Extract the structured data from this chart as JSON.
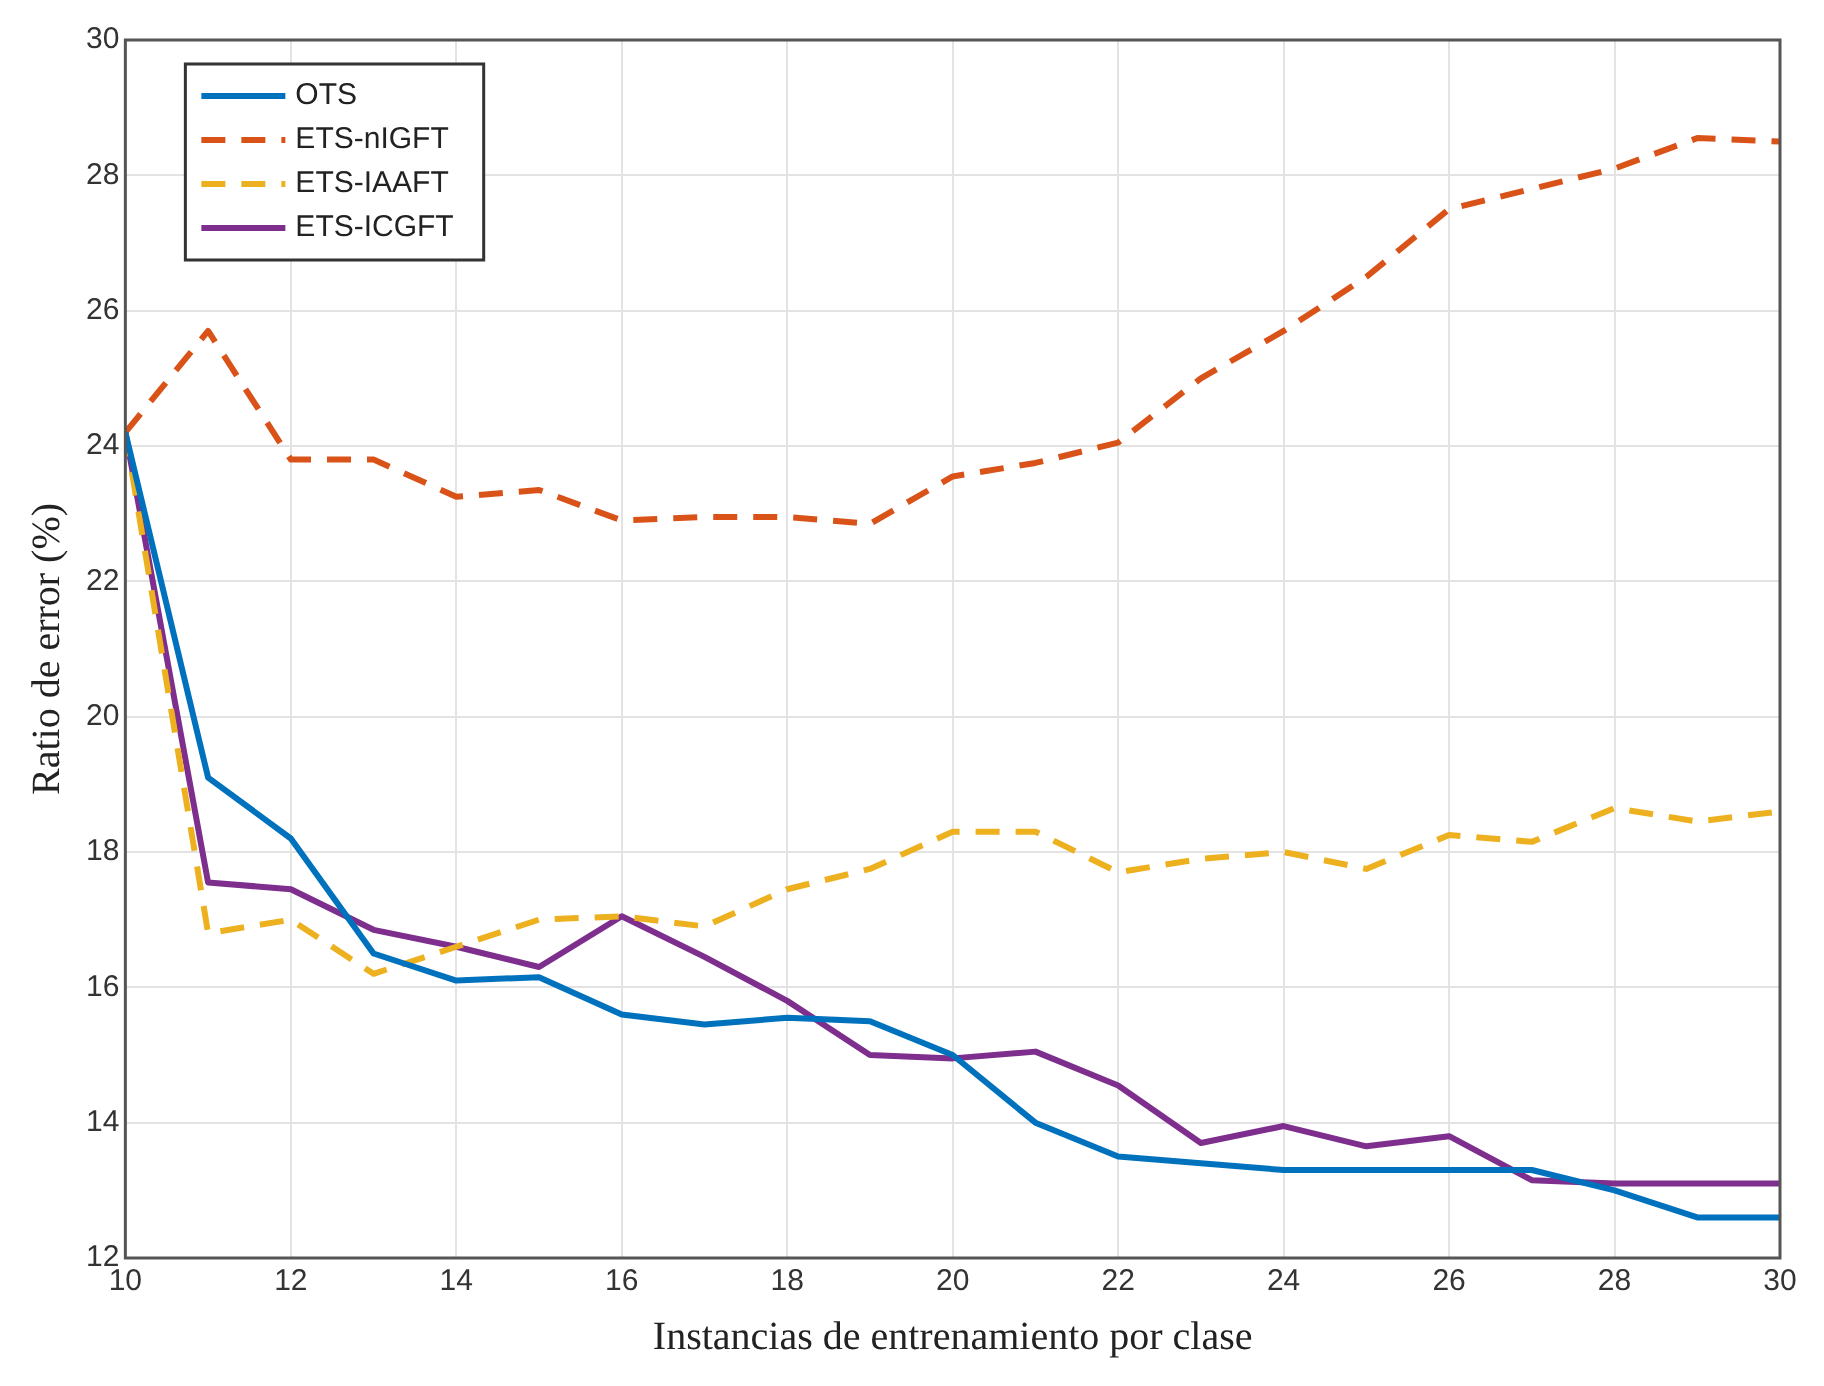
{
  "chart_data": {
    "type": "line",
    "xlabel": "Instancias de entrenamiento por clase",
    "ylabel": "Ratio de error (%)",
    "x": [
      10,
      11,
      12,
      13,
      14,
      15,
      16,
      17,
      18,
      19,
      20,
      21,
      22,
      23,
      24,
      25,
      26,
      27,
      28,
      29,
      30
    ],
    "xlim": [
      10,
      30
    ],
    "xticks": [
      10,
      12,
      14,
      16,
      18,
      20,
      22,
      24,
      26,
      28,
      30
    ],
    "ylim": [
      12,
      30
    ],
    "yticks": [
      12,
      14,
      16,
      18,
      20,
      22,
      24,
      26,
      28,
      30
    ],
    "grid": true,
    "legend": "top left",
    "marker": "none",
    "series": [
      {
        "name": "OTS",
        "color": "#0072bd",
        "line_style": "solid",
        "values": [
          24.2,
          19.1,
          18.2,
          16.5,
          16.1,
          16.15,
          15.6,
          15.45,
          15.55,
          15.5,
          15.0,
          14.0,
          13.5,
          13.4,
          13.3,
          13.3,
          13.3,
          13.3,
          13.0,
          12.6,
          12.6
        ]
      },
      {
        "name": "ETS-nIGFT",
        "color": "#d95319",
        "line_style": "dashed",
        "values": [
          24.2,
          25.7,
          23.8,
          23.8,
          23.25,
          23.35,
          22.9,
          22.95,
          22.95,
          22.85,
          23.55,
          23.75,
          24.05,
          25.0,
          25.7,
          26.5,
          27.5,
          27.8,
          28.1,
          28.55,
          28.5
        ]
      },
      {
        "name": "ETS-IAAFT",
        "color": "#edb120",
        "line_style": "dashed",
        "values": [
          24.2,
          16.8,
          17.0,
          16.2,
          16.6,
          17.0,
          17.05,
          16.9,
          17.45,
          17.75,
          18.3,
          18.3,
          17.7,
          17.9,
          18.0,
          17.75,
          18.25,
          18.15,
          18.65,
          18.45,
          18.6
        ]
      },
      {
        "name": "ETS-ICGFT",
        "color": "#7e2f8e",
        "line_style": "solid",
        "values": [
          24.2,
          17.55,
          17.45,
          16.85,
          16.6,
          16.3,
          17.05,
          16.45,
          15.8,
          15.0,
          14.95,
          15.05,
          14.55,
          13.7,
          13.95,
          13.65,
          13.8,
          13.15,
          13.1,
          13.1,
          13.1
        ]
      }
    ]
  }
}
